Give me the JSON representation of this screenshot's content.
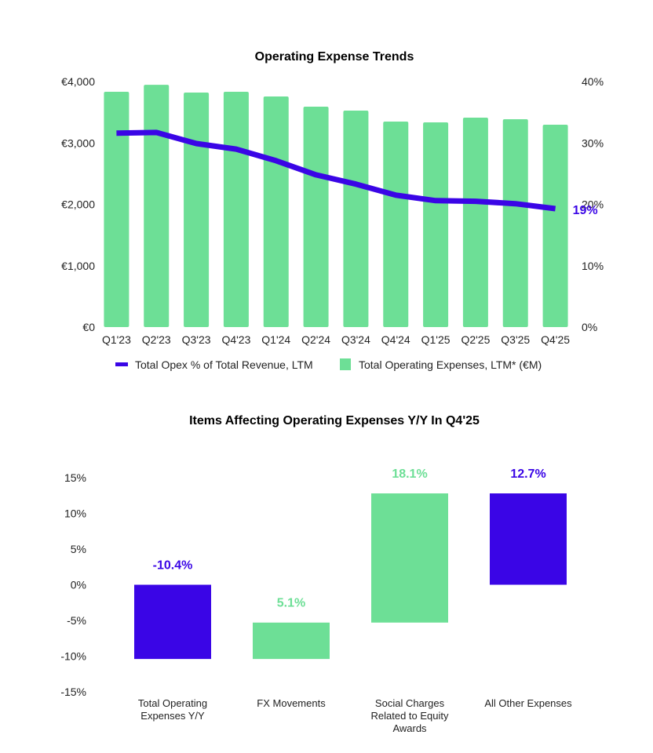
{
  "colors": {
    "green": "#6DDF96",
    "purple": "#3A05E6"
  },
  "chart_data": [
    {
      "type": "bar+line",
      "title": "Operating Expense Trends",
      "categories": [
        "Q1'23",
        "Q2'23",
        "Q3'23",
        "Q4'23",
        "Q1'24",
        "Q2'24",
        "Q3'24",
        "Q4'24",
        "Q1'25",
        "Q2'25",
        "Q3'25",
        "Q4'25"
      ],
      "series": [
        {
          "name": "Total Operating Expenses, LTM* (€M)",
          "type": "bar",
          "axis": "left",
          "values": [
            3834,
            3948,
            3821,
            3834,
            3757,
            3591,
            3527,
            3348,
            3335,
            3412,
            3387,
            3297
          ]
        },
        {
          "name": "Total Opex % of Total Revenue, LTM",
          "type": "line",
          "axis": "right",
          "values": [
            31.6,
            31.7,
            29.9,
            29.0,
            27.1,
            24.8,
            23.3,
            21.5,
            20.6,
            20.5,
            20.1,
            19.3
          ]
        }
      ],
      "left_axis": {
        "ylim": [
          0,
          4000
        ],
        "ticks": [
          "€0",
          "€1,000",
          "€2,000",
          "€3,000",
          "€4,000"
        ]
      },
      "right_axis": {
        "ylim": [
          0,
          40
        ],
        "ticks": [
          "0%",
          "10%",
          "20%",
          "30%",
          "40%"
        ]
      },
      "annotation": "19%",
      "legend": [
        {
          "label": "Total Opex % of Total Revenue, LTM",
          "kind": "line"
        },
        {
          "label": "Total Operating Expenses, LTM* (€M)",
          "kind": "bar"
        }
      ],
      "legend_position": "bottom"
    },
    {
      "type": "waterfall",
      "title": "Items Affecting Operating Expenses Y/Y In Q4'25",
      "ylim": [
        -15,
        15
      ],
      "ticks": [
        "15%",
        "10%",
        "5%",
        "0%",
        "-5%",
        "-10%",
        "-15%"
      ],
      "tick_values": [
        15,
        10,
        5,
        0,
        -5,
        -10,
        -15
      ],
      "items": [
        {
          "label_lines": [
            "Total Operating",
            "Expenses Y/Y"
          ],
          "start": 0,
          "end": -10.4,
          "label": "-10.4%",
          "color": "purple"
        },
        {
          "label_lines": [
            "FX Movements"
          ],
          "start": -10.4,
          "end": -5.3,
          "label": "5.1%",
          "color": "green"
        },
        {
          "label_lines": [
            "Social Charges",
            "Related to Equity",
            "Awards"
          ],
          "start": -5.3,
          "end": 12.8,
          "label": "18.1%",
          "color": "green"
        },
        {
          "label_lines": [
            "All Other Expenses"
          ],
          "start": 12.8,
          "end": 0,
          "label": "12.7%",
          "color": "purple"
        }
      ]
    }
  ]
}
